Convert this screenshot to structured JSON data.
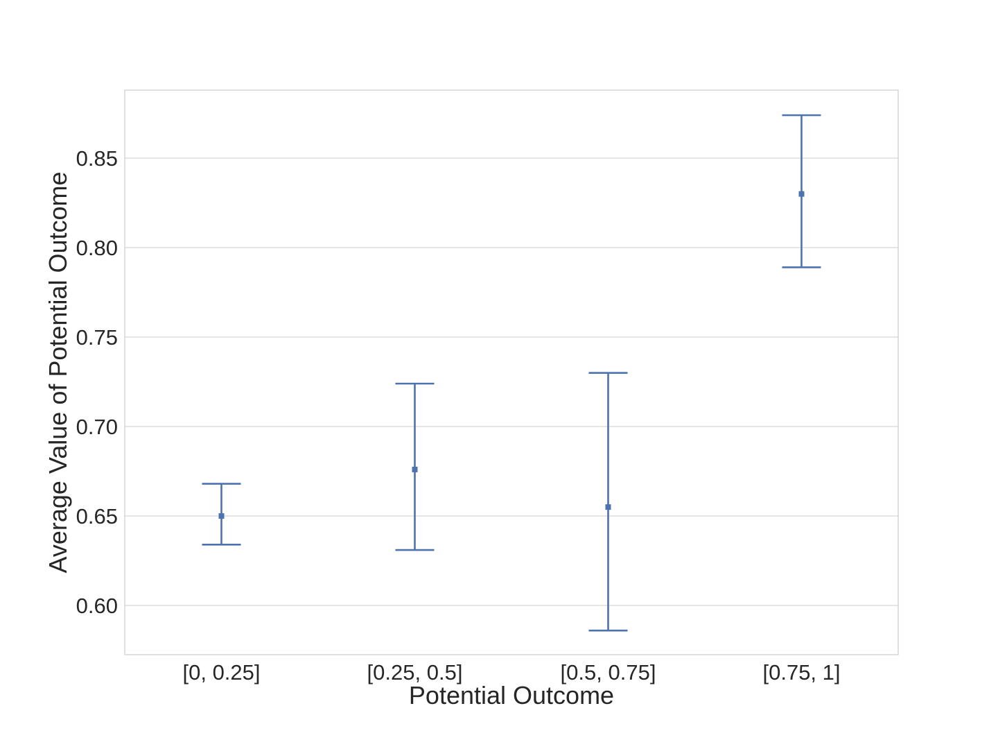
{
  "chart_data": {
    "type": "scatter",
    "title": "",
    "xlabel": "Potential Outcome",
    "ylabel": "Average Value of Potential Outcome",
    "categories": [
      "[0, 0.25]",
      "[0.25, 0.5]",
      "[0.5, 0.75]",
      "[0.75, 1]"
    ],
    "series": [
      {
        "values": [
          0.65,
          0.676,
          0.655,
          0.83
        ],
        "lower": [
          0.634,
          0.631,
          0.586,
          0.789
        ],
        "upper": [
          0.668,
          0.724,
          0.73,
          0.874
        ]
      }
    ],
    "ylim": [
      0.5725,
      0.888
    ],
    "yticks": [
      0.6,
      0.65,
      0.7,
      0.75,
      0.8,
      0.85
    ],
    "ytick_labels": [
      "0.60",
      "0.65",
      "0.70",
      "0.75",
      "0.80",
      "0.85"
    ],
    "grid": true,
    "colors": {
      "series": "#4c72b0",
      "grid": "#cccccc",
      "text": "#262626"
    }
  }
}
